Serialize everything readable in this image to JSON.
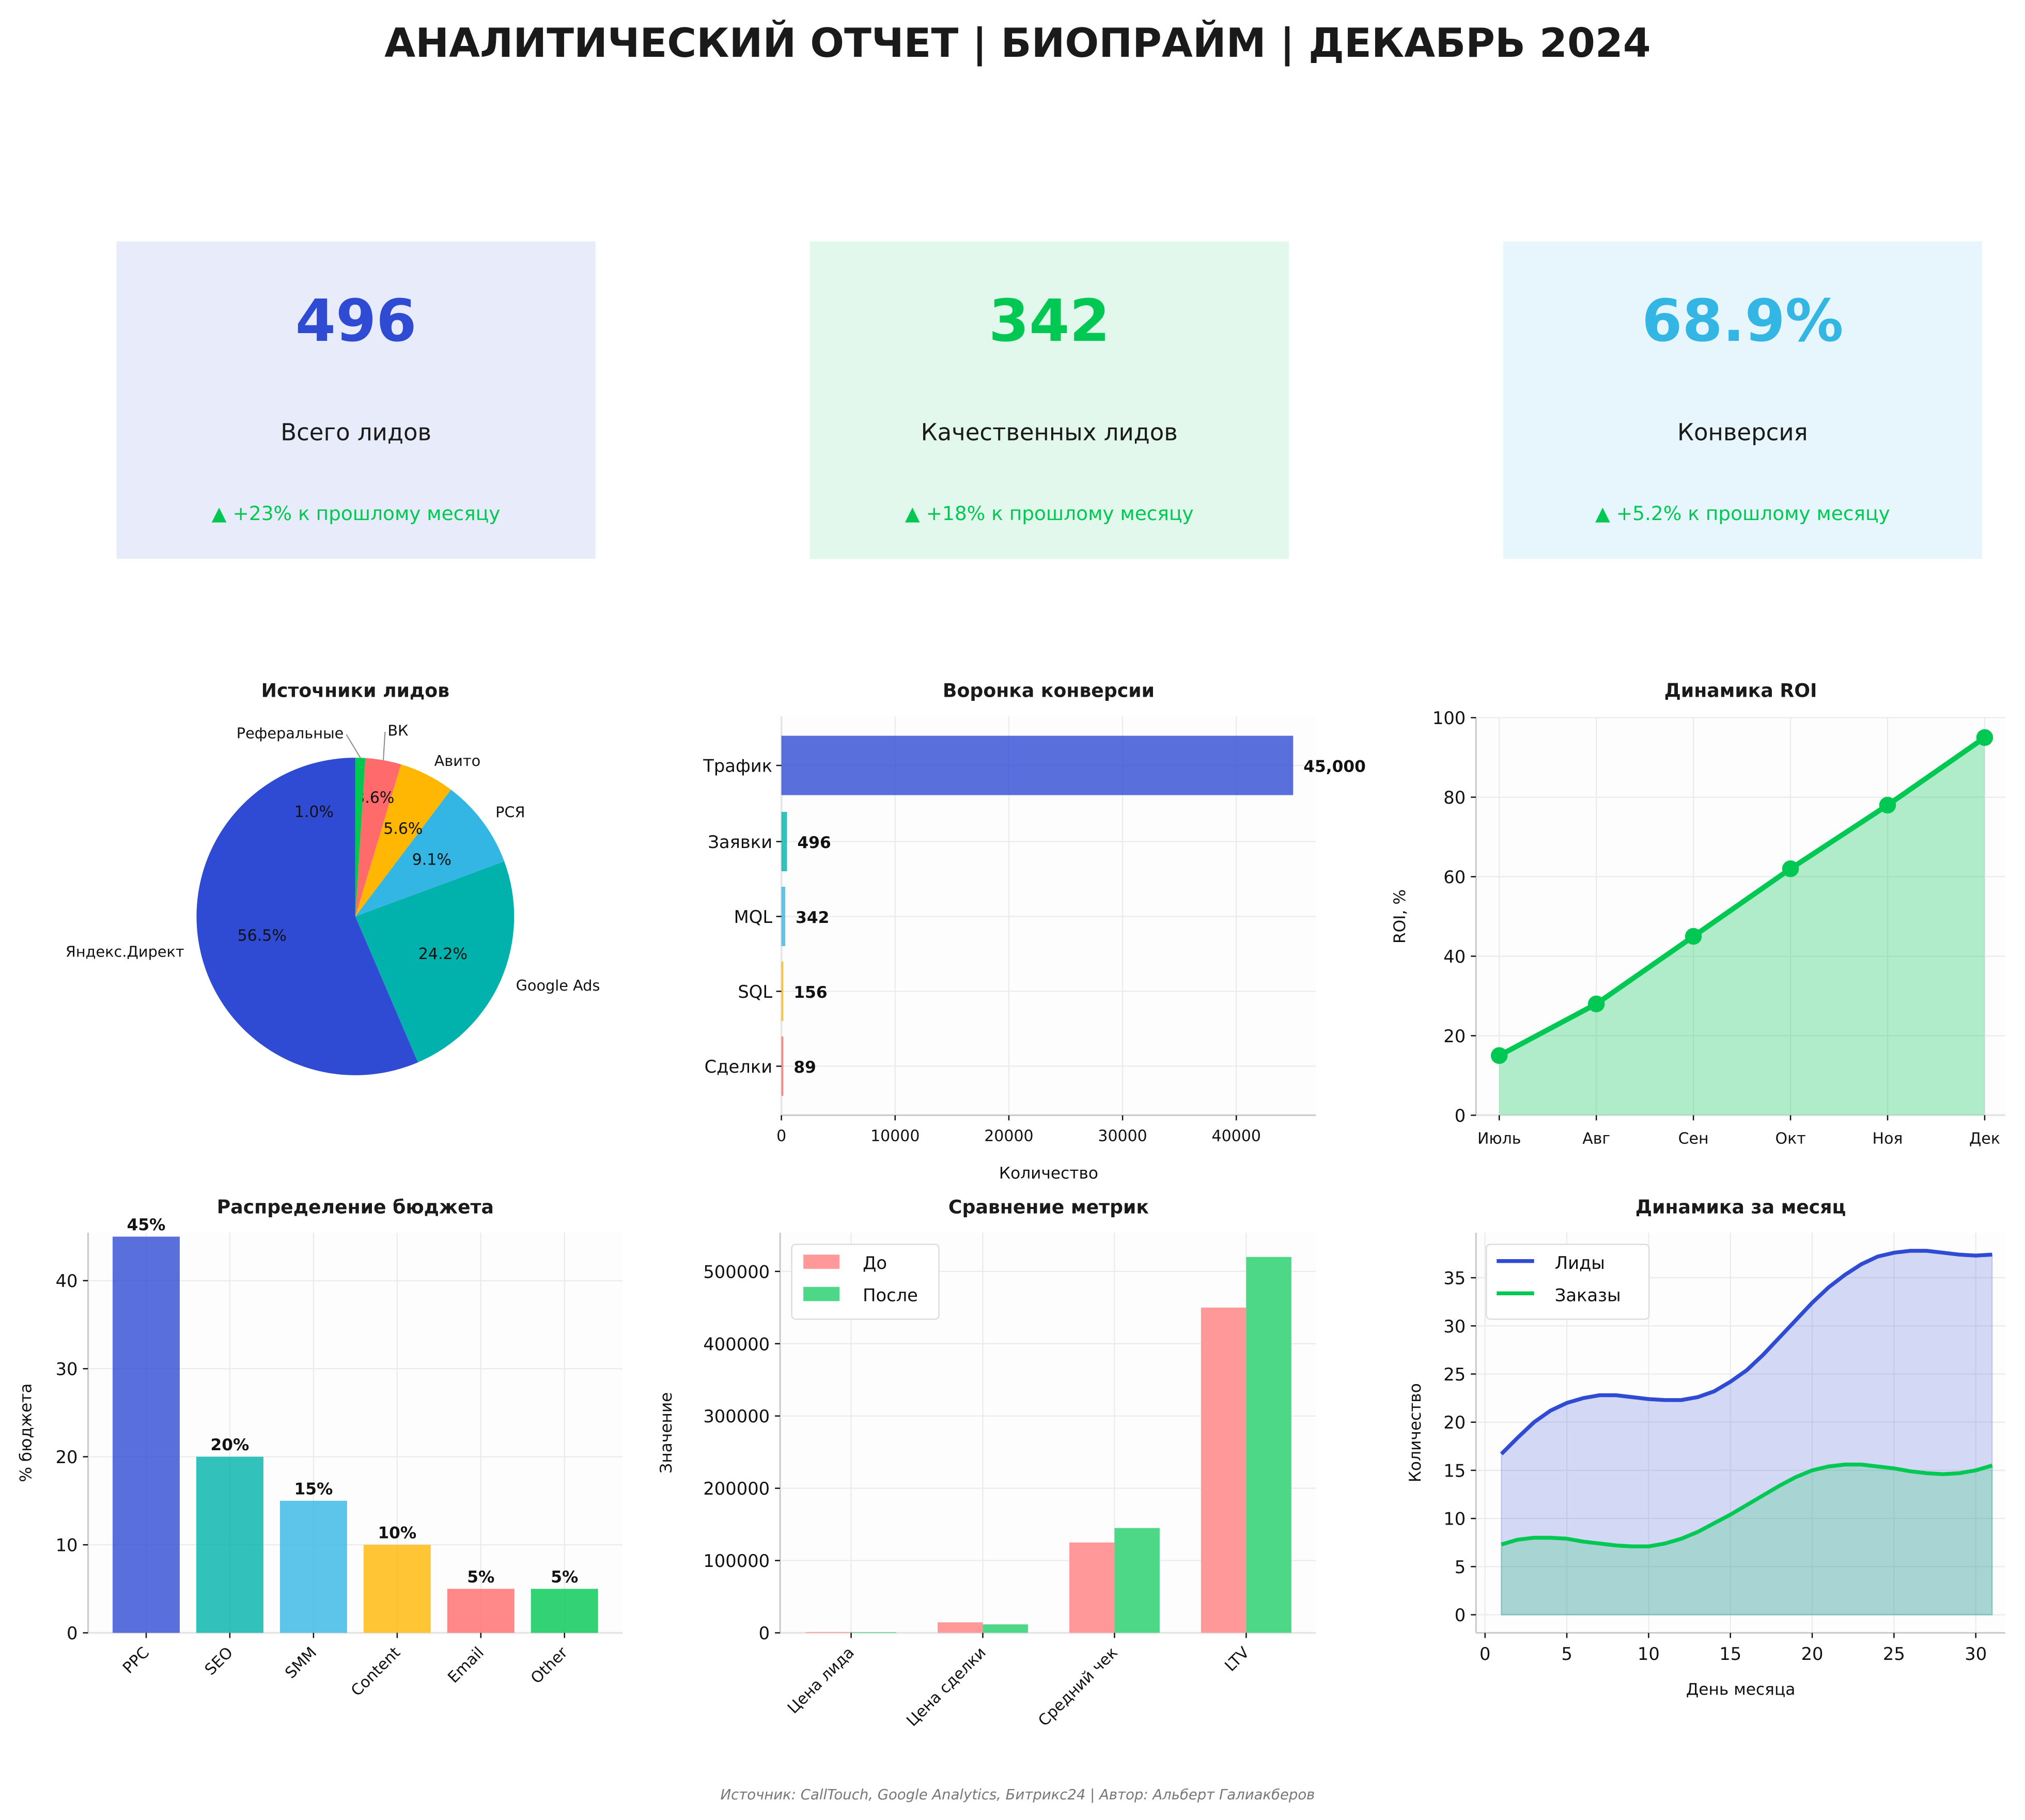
{
  "title": "АНАЛИТИЧЕСКИЙ ОТЧЕТ | БИОПРАЙМ | ДЕКАБРЬ 2024",
  "footer": "Источник: CallTouch, Google Analytics, Битрикс24 | Автор: Альберт Галиакберов",
  "colors": {
    "blue": "#2f4bd3",
    "green": "#00c853",
    "lightblue": "#34b6e4",
    "teal": "#00b2ab",
    "yellow": "#ffb703",
    "red": "#ff6b6b"
  },
  "kpis": [
    {
      "value": "496",
      "label": "Всего лидов",
      "change": "▲ +23% к прошлому месяцу",
      "bg": "#e8ecfa",
      "color": "#2f4bd3"
    },
    {
      "value": "342",
      "label": "Качественных лидов",
      "change": "▲ +18% к прошлому месяцу",
      "bg": "#e3f8ec",
      "color": "#00c853"
    },
    {
      "value": "68.9%",
      "label": "Конверсия",
      "change": "▲ +5.2% к прошлому месяцу",
      "bg": "#e6f6fc",
      "color": "#34b6e4"
    }
  ],
  "chart_data": [
    {
      "type": "pie",
      "title": "Источники лидов",
      "labels": [
        "Яндекс.Директ",
        "Google Ads",
        "РСЯ",
        "Авито",
        "ВК",
        "Реферальные"
      ],
      "values": [
        280,
        120,
        45,
        28,
        18,
        5
      ],
      "pct_labels": [
        "56.5%",
        "24.2%",
        "9.1%",
        "5.6%",
        "3.6%",
        "1.0%"
      ],
      "colors": [
        "#2f4bd3",
        "#00b2ab",
        "#34b6e4",
        "#ffb703",
        "#ff6b6b",
        "#00c853"
      ]
    },
    {
      "type": "bar",
      "orientation": "horizontal",
      "title": "Воронка конверсии",
      "xlabel": "Количество",
      "categories": [
        "Трафик",
        "Заявки",
        "MQL",
        "SQL",
        "Сделки"
      ],
      "values": [
        45000,
        496,
        342,
        156,
        89
      ],
      "value_labels": [
        "45,000",
        "496",
        "342",
        "156",
        "89"
      ],
      "colors": [
        "#2f4bd3",
        "#00b2ab",
        "#34b6e4",
        "#ffb703",
        "#ff6b6b"
      ],
      "xticks": [
        "0",
        "10000",
        "20000",
        "30000",
        "40000"
      ],
      "xlim": [
        0,
        47000
      ],
      "grid": true
    },
    {
      "type": "area",
      "title": "Динамика ROI",
      "ylabel": "ROI, %",
      "categories": [
        "Июль",
        "Авг",
        "Сен",
        "Окт",
        "Ноя",
        "Дек"
      ],
      "values": [
        15,
        28,
        45,
        62,
        78,
        95
      ],
      "ylim": [
        0,
        100
      ],
      "yticks": [
        "0",
        "20",
        "40",
        "60",
        "80",
        "100"
      ],
      "color": "#00c853",
      "grid": true
    },
    {
      "type": "bar",
      "title": "Распределение бюджета",
      "ylabel": "% бюджета",
      "categories": [
        "PPC",
        "SEO",
        "SMM",
        "Content",
        "Email",
        "Other"
      ],
      "values": [
        45,
        20,
        15,
        10,
        5,
        5
      ],
      "value_labels": [
        "45%",
        "20%",
        "15%",
        "10%",
        "5%",
        "5%"
      ],
      "colors": [
        "#2f4bd3",
        "#00b2ab",
        "#34b6e4",
        "#ffb703",
        "#ff6b6b",
        "#00c853"
      ],
      "yticks": [
        "0",
        "10",
        "20",
        "30",
        "40"
      ],
      "ylim": [
        0,
        47.5
      ],
      "grid": true
    },
    {
      "type": "bar",
      "title": "Сравнение метрик",
      "ylabel": "Значение",
      "categories": [
        "Цена лида",
        "Цена сделки",
        "Средний чек",
        "LTV"
      ],
      "series": [
        {
          "name": "До",
          "values": [
            1200,
            14500,
            125000,
            450000
          ],
          "color": "#ff9898"
        },
        {
          "name": "После",
          "values": [
            950,
            11700,
            145000,
            520000
          ],
          "color": "#4cd886"
        }
      ],
      "yticks": [
        "0",
        "100000",
        "200000",
        "300000",
        "400000",
        "500000"
      ],
      "ylim": [
        0,
        545000
      ],
      "legend": "top-left",
      "grid": true
    },
    {
      "type": "area",
      "title": "Динамика за месяц",
      "xlabel": "День месяца",
      "ylabel": "Количество",
      "x": [
        1,
        2,
        3,
        4,
        5,
        6,
        7,
        8,
        9,
        10,
        11,
        12,
        13,
        14,
        15,
        16,
        17,
        18,
        19,
        20,
        21,
        22,
        23,
        24,
        25,
        26,
        27,
        28,
        29,
        30,
        31
      ],
      "series": [
        {
          "name": "Лиды",
          "color": "#2f4bd3",
          "fill": "#d5daf5",
          "values": [
            16.7,
            18.4,
            20.0,
            21.2,
            22.0,
            22.5,
            22.8,
            22.8,
            22.6,
            22.4,
            22.3,
            22.3,
            22.6,
            23.2,
            24.2,
            25.4,
            27.0,
            28.8,
            30.6,
            32.4,
            34.0,
            35.3,
            36.4,
            37.2,
            37.6,
            37.8,
            37.8,
            37.6,
            37.4,
            37.3,
            37.4
          ]
        },
        {
          "name": "Заказы",
          "color": "#00c853",
          "fill": "#aad6d4",
          "values": [
            7.3,
            7.8,
            8.0,
            8.0,
            7.9,
            7.6,
            7.4,
            7.2,
            7.1,
            7.1,
            7.4,
            7.9,
            8.6,
            9.5,
            10.4,
            11.4,
            12.4,
            13.4,
            14.3,
            15.0,
            15.4,
            15.6,
            15.6,
            15.4,
            15.2,
            14.9,
            14.7,
            14.6,
            14.7,
            15.0,
            15.5
          ]
        }
      ],
      "xticks": [
        "0",
        "5",
        "10",
        "15",
        "20",
        "25",
        "30"
      ],
      "yticks": [
        "0",
        "5",
        "10",
        "15",
        "20",
        "25",
        "30",
        "35"
      ],
      "xlim": [
        -0.5,
        32
      ],
      "ylim": [
        -1.7,
        39.2
      ],
      "legend": "top-left",
      "grid": true
    }
  ]
}
